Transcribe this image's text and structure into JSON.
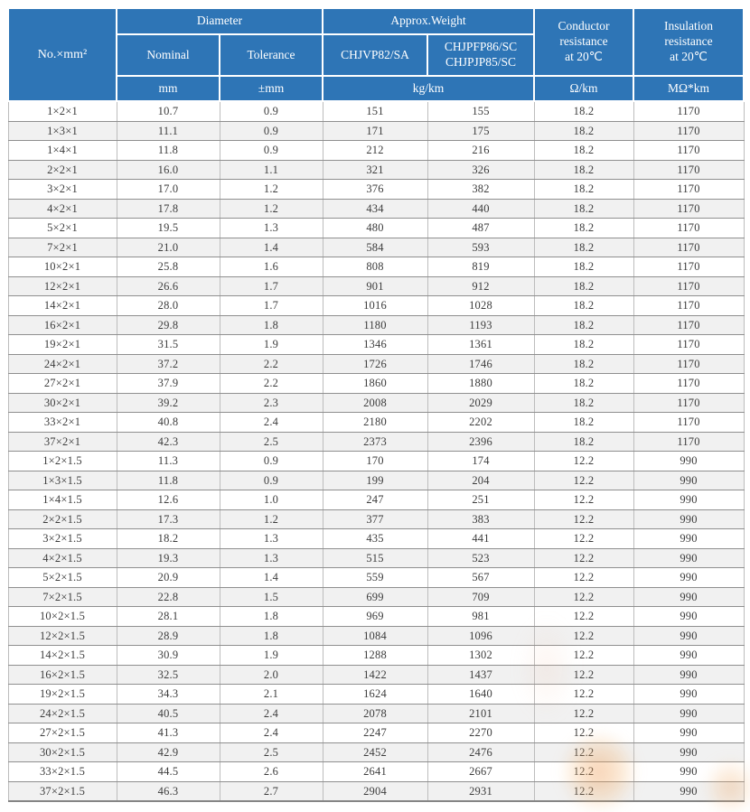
{
  "colors": {
    "header_bg": "#2E75B6",
    "header_text": "#ffffff",
    "row_bg": "#ffffff",
    "row_alt_bg": "#f1f1f1",
    "grid_horizontal": "#8f8f8f",
    "grid_vertical": "#bdbdbd",
    "cell_text": "#3c3c3c",
    "watermark_orange": "#eb8c3c"
  },
  "table": {
    "header": {
      "no_label": "No.×mm²",
      "diameter": "Diameter",
      "nominal": "Nominal",
      "tolerance": "Tolerance",
      "approx_weight": "Approx.Weight",
      "model_a": "CHJVP82/SA",
      "model_b": "CHJPFP86/SC\nCHJPJP85/SC",
      "conductor": "Conductor\nresistance\nat 20℃",
      "insulation": "Insulation\nresistance\nat 20℃",
      "unit_mm": "mm",
      "unit_tolerance": "±mm",
      "unit_weight": "kg/km",
      "unit_conductor": "Ω/km",
      "unit_insulation": "MΩ*km"
    },
    "columns": [
      "spec",
      "nominal-diameter",
      "tolerance",
      "weight-chjvp82-sa",
      "weight-chjpfp86-sc",
      "conductor-resistance",
      "insulation-resistance"
    ],
    "rows": [
      [
        "1×2×1",
        "10.7",
        "0.9",
        "151",
        "155",
        "18.2",
        "1170"
      ],
      [
        "1×3×1",
        "11.1",
        "0.9",
        "171",
        "175",
        "18.2",
        "1170"
      ],
      [
        "1×4×1",
        "11.8",
        "0.9",
        "212",
        "216",
        "18.2",
        "1170"
      ],
      [
        "2×2×1",
        "16.0",
        "1.1",
        "321",
        "326",
        "18.2",
        "1170"
      ],
      [
        "3×2×1",
        "17.0",
        "1.2",
        "376",
        "382",
        "18.2",
        "1170"
      ],
      [
        "4×2×1",
        "17.8",
        "1.2",
        "434",
        "440",
        "18.2",
        "1170"
      ],
      [
        "5×2×1",
        "19.5",
        "1.3",
        "480",
        "487",
        "18.2",
        "1170"
      ],
      [
        "7×2×1",
        "21.0",
        "1.4",
        "584",
        "593",
        "18.2",
        "1170"
      ],
      [
        "10×2×1",
        "25.8",
        "1.6",
        "808",
        "819",
        "18.2",
        "1170"
      ],
      [
        "12×2×1",
        "26.6",
        "1.7",
        "901",
        "912",
        "18.2",
        "1170"
      ],
      [
        "14×2×1",
        "28.0",
        "1.7",
        "1016",
        "1028",
        "18.2",
        "1170"
      ],
      [
        "16×2×1",
        "29.8",
        "1.8",
        "1180",
        "1193",
        "18.2",
        "1170"
      ],
      [
        "19×2×1",
        "31.5",
        "1.9",
        "1346",
        "1361",
        "18.2",
        "1170"
      ],
      [
        "24×2×1",
        "37.2",
        "2.2",
        "1726",
        "1746",
        "18.2",
        "1170"
      ],
      [
        "27×2×1",
        "37.9",
        "2.2",
        "1860",
        "1880",
        "18.2",
        "1170"
      ],
      [
        "30×2×1",
        "39.2",
        "2.3",
        "2008",
        "2029",
        "18.2",
        "1170"
      ],
      [
        "33×2×1",
        "40.8",
        "2.4",
        "2180",
        "2202",
        "18.2",
        "1170"
      ],
      [
        "37×2×1",
        "42.3",
        "2.5",
        "2373",
        "2396",
        "18.2",
        "1170"
      ],
      [
        "1×2×1.5",
        "11.3",
        "0.9",
        "170",
        "174",
        "12.2",
        "990"
      ],
      [
        "1×3×1.5",
        "11.8",
        "0.9",
        "199",
        "204",
        "12.2",
        "990"
      ],
      [
        "1×4×1.5",
        "12.6",
        "1.0",
        "247",
        "251",
        "12.2",
        "990"
      ],
      [
        "2×2×1.5",
        "17.3",
        "1.2",
        "377",
        "383",
        "12.2",
        "990"
      ],
      [
        "3×2×1.5",
        "18.2",
        "1.3",
        "435",
        "441",
        "12.2",
        "990"
      ],
      [
        "4×2×1.5",
        "19.3",
        "1.3",
        "515",
        "523",
        "12.2",
        "990"
      ],
      [
        "5×2×1.5",
        "20.9",
        "1.4",
        "559",
        "567",
        "12.2",
        "990"
      ],
      [
        "7×2×1.5",
        "22.8",
        "1.5",
        "699",
        "709",
        "12.2",
        "990"
      ],
      [
        "10×2×1.5",
        "28.1",
        "1.8",
        "969",
        "981",
        "12.2",
        "990"
      ],
      [
        "12×2×1.5",
        "28.9",
        "1.8",
        "1084",
        "1096",
        "12.2",
        "990"
      ],
      [
        "14×2×1.5",
        "30.9",
        "1.9",
        "1288",
        "1302",
        "12.2",
        "990"
      ],
      [
        "16×2×1.5",
        "32.5",
        "2.0",
        "1422",
        "1437",
        "12.2",
        "990"
      ],
      [
        "19×2×1.5",
        "34.3",
        "2.1",
        "1624",
        "1640",
        "12.2",
        "990"
      ],
      [
        "24×2×1.5",
        "40.5",
        "2.4",
        "2078",
        "2101",
        "12.2",
        "990"
      ],
      [
        "27×2×1.5",
        "41.3",
        "2.4",
        "2247",
        "2270",
        "12.2",
        "990"
      ],
      [
        "30×2×1.5",
        "42.9",
        "2.5",
        "2452",
        "2476",
        "12.2",
        "990"
      ],
      [
        "33×2×1.5",
        "44.5",
        "2.6",
        "2641",
        "2667",
        "12.2",
        "990"
      ],
      [
        "37×2×1.5",
        "46.3",
        "2.7",
        "2904",
        "2931",
        "12.2",
        "990"
      ]
    ]
  }
}
